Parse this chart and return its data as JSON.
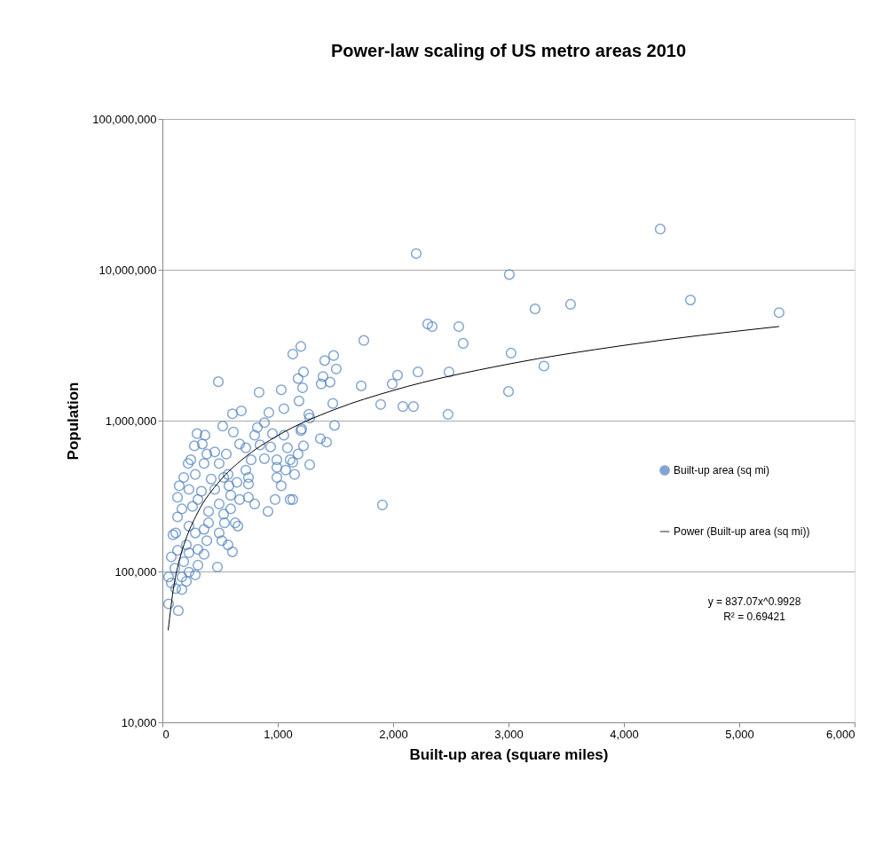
{
  "chart_data": {
    "type": "scatter",
    "title": "Power-law scaling of US metro areas 2010",
    "xlabel": "Built-up area (square miles)",
    "ylabel": "Population",
    "annotations": [
      "y = 837.07x^0.9928",
      "R² = 0.69421"
    ],
    "log": "y",
    "grid": "y",
    "legend": "right",
    "xlim": [
      0,
      6000
    ],
    "xticks": [
      {
        "value": 0,
        "label": "0"
      },
      {
        "value": 1000,
        "label": "1,000"
      },
      {
        "value": 2000,
        "label": "2,000"
      },
      {
        "value": 3000,
        "label": "3,000"
      },
      {
        "value": 4000,
        "label": "4,000"
      },
      {
        "value": 5000,
        "label": "5,000"
      },
      {
        "value": 6000,
        "label": "6,000"
      }
    ],
    "ylim": [
      10000,
      100000000
    ],
    "yticks": [
      {
        "value": 10000,
        "label": "10,000"
      },
      {
        "value": 100000,
        "label": "100,000"
      },
      {
        "value": 1000000,
        "label": "1,000,000"
      },
      {
        "value": 10000000,
        "label": "10,000,000"
      },
      {
        "value": 100000000,
        "label": "100,000,000"
      }
    ],
    "series": [
      {
        "name": "Built-up area (sq mi)",
        "type": "scatter",
        "color": "#4f81bd",
        "marker": "circle",
        "x": [
          4315,
          2200,
          3007,
          4577,
          3538,
          3230,
          5345,
          3022,
          3307,
          3000,
          2300,
          2338,
          2569,
          2607,
          1746,
          1200,
          1130,
          1484,
          1407,
          1507,
          1223,
          1176,
          1392,
          1453,
          1215,
          1377,
          1723,
          2038,
          2215,
          2484,
          1992,
          1184,
          1477,
          1892,
          2084,
          2176,
          2476,
          1269,
          1277,
          1200,
          1492,
          1369,
          1423,
          1223,
          1176,
          1277,
          1907,
          1130,
          1146,
          1130,
          485,
          838,
          1030,
          607,
          684,
          923,
          1053,
          523,
          300,
          369,
          615,
          823,
          884,
          800,
          954,
          1053,
          1207,
          277,
          346,
          669,
          723,
          846,
          938,
          1084,
          385,
          454,
          554,
          769,
          884,
          992,
          1107,
          246,
          223,
          361,
          492,
          569,
          723,
          992,
          1069,
          185,
          285,
          423,
          531,
          746,
          746,
          992,
          646,
          1030,
          1107,
          977,
          915,
          146,
          230,
          338,
          454,
          577,
          131,
          308,
          592,
          669,
          746,
          800,
          492,
          169,
          261,
          400,
          531,
          592,
          631,
          538,
          654,
          400,
          131,
          230,
          361,
          115,
          285,
          492,
          92,
          515,
          569,
          607,
          385,
          208,
          308,
          131,
          230,
          361,
          77,
          185,
          308,
          477,
          108,
          230,
          54,
          169,
          285,
          77,
          208,
          115,
          169,
          54,
          138
        ],
        "values": [
          18600000,
          12800000,
          9300000,
          6300000,
          5900000,
          5500000,
          5200000,
          2800000,
          2300000,
          1560000,
          4370000,
          4200000,
          4200000,
          3250000,
          3400000,
          3100000,
          2760000,
          2700000,
          2500000,
          2200000,
          2100000,
          1900000,
          1960000,
          1800000,
          1650000,
          1750000,
          1700000,
          2000000,
          2100000,
          2100000,
          1750000,
          1350000,
          1300000,
          1280000,
          1240000,
          1240000,
          1100000,
          1100000,
          1040000,
          860000,
          930000,
          760000,
          720000,
          680000,
          600000,
          510000,
          276000,
          530000,
          440000,
          300000,
          1810000,
          1540000,
          1600000,
          1110000,
          1160000,
          1130000,
          1200000,
          920000,
          820000,
          800000,
          840000,
          900000,
          970000,
          800000,
          820000,
          800000,
          880000,
          680000,
          700000,
          700000,
          660000,
          690000,
          670000,
          660000,
          600000,
          620000,
          600000,
          550000,
          560000,
          550000,
          550000,
          550000,
          520000,
          520000,
          520000,
          440000,
          470000,
          490000,
          470000,
          420000,
          440000,
          410000,
          420000,
          420000,
          380000,
          420000,
          390000,
          370000,
          300000,
          300000,
          250000,
          370000,
          350000,
          340000,
          350000,
          370000,
          310000,
          300000,
          320000,
          300000,
          310000,
          280000,
          280000,
          260000,
          270000,
          250000,
          240000,
          260000,
          210000,
          210000,
          200000,
          210000,
          230000,
          200000,
          190000,
          180000,
          180000,
          180000,
          175000,
          160000,
          150000,
          135000,
          160000,
          150000,
          140000,
          138000,
          133000,
          130000,
          125000,
          116000,
          110000,
          107000,
          105000,
          99000,
          92000,
          92000,
          95000,
          84000,
          86000,
          77000,
          76000,
          61000,
          55000
        ]
      },
      {
        "name": "Power (Built-up area (sq mi))",
        "type": "line",
        "color": "#000000",
        "line_style": "solid",
        "x": [
          50,
          100,
          150,
          200,
          300,
          500,
          700,
          1000,
          1500,
          2000,
          3000,
          4000,
          5345
        ],
        "values": [
          40700,
          81000,
          121000,
          161000,
          241000,
          400000,
          559000,
          796000,
          1191000,
          1585000,
          2370000,
          3154000,
          4207000
        ]
      }
    ]
  }
}
